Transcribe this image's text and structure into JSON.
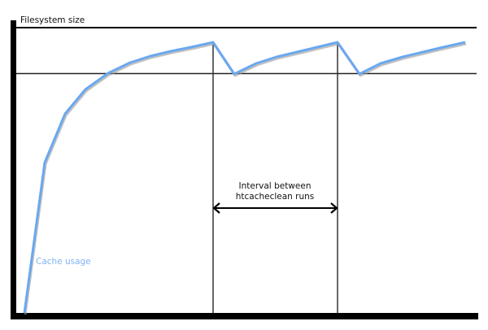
{
  "diagram": {
    "y_axis_label": "Filesystem size",
    "interval_label_line1": "Interval between",
    "interval_label_line2": "htcacheclean runs",
    "curve_label": "Cache usage",
    "colors": {
      "curve": "#6aa8f0",
      "curve_shadow": "#9a9a9a",
      "axis": "#000000",
      "curve_label": "#7fb2f5"
    }
  }
}
